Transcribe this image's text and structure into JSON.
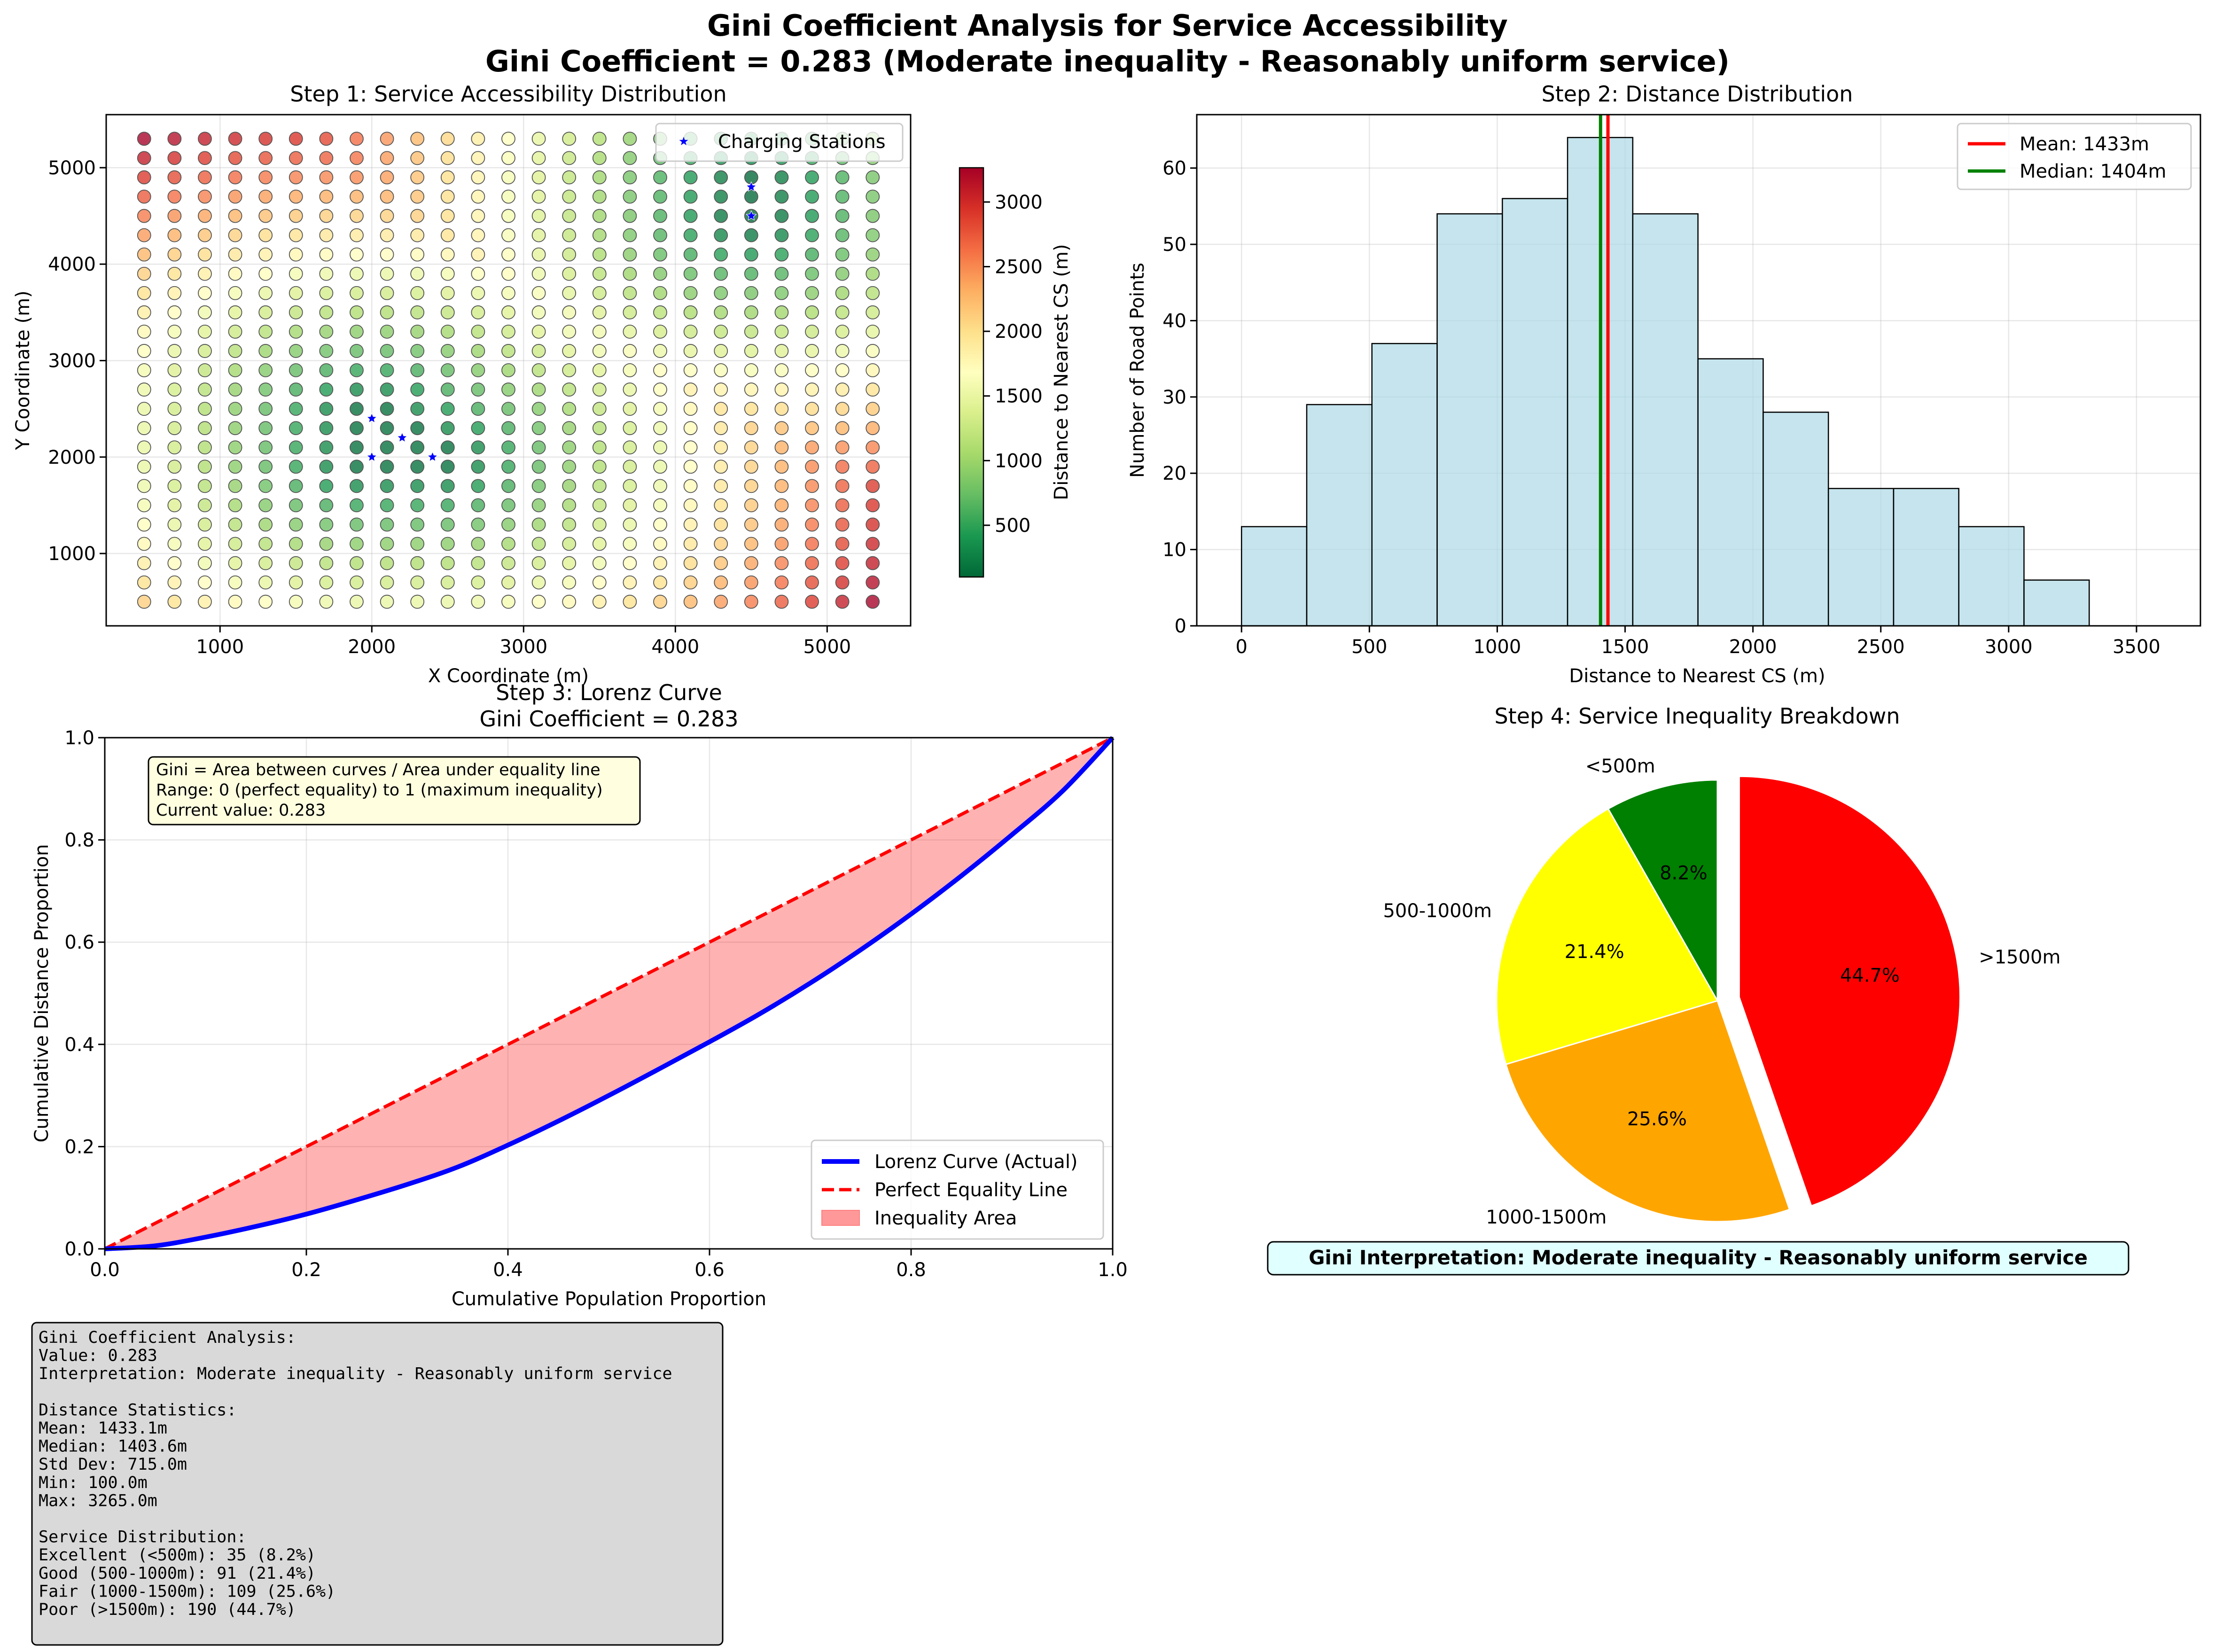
{
  "figure": {
    "title_line1": "Gini Coefficient Analysis for Service Accessibility",
    "title_line2": "Gini Coefficient = 0.283 (Moderate inequality - Reasonably uniform service)"
  },
  "chart_data": [
    {
      "id": "scatter",
      "type": "scatter",
      "title": "Step 1: Service Accessibility Distribution",
      "xlabel": "X Coordinate (m)",
      "ylabel": "Y Coordinate (m)",
      "xlim": [
        250,
        5550
      ],
      "ylim": [
        250,
        5550
      ],
      "xticks": [
        1000,
        2000,
        3000,
        4000,
        5000
      ],
      "yticks": [
        1000,
        2000,
        3000,
        4000,
        5000
      ],
      "grid": {
        "x_start": 500,
        "y_start": 500,
        "step": 200,
        "count": 25
      },
      "stations": [
        [
          2000,
          2400
        ],
        [
          2000,
          2000
        ],
        [
          2200,
          2200
        ],
        [
          2400,
          2000
        ],
        [
          4500,
          4500
        ],
        [
          4500,
          4800
        ]
      ],
      "legend": {
        "label": "Charging Stations",
        "position": "upper-right"
      },
      "colorbar": {
        "label": "Distance to Nearest CS (m)",
        "min": 100,
        "max": 3265,
        "ticks": [
          500,
          1000,
          1500,
          2000,
          2500,
          3000
        ],
        "colormap": "RdYlGn_r"
      }
    },
    {
      "id": "histogram",
      "type": "bar",
      "title": "Step 2: Distance Distribution",
      "xlabel": "Distance to Nearest CS (m)",
      "ylabel": "Number of Road Points",
      "bin_edges": [
        0,
        255,
        510,
        765,
        1020,
        1275,
        1530,
        1785,
        2040,
        2295,
        2550,
        2805,
        3060,
        3315,
        3570
      ],
      "counts": [
        13,
        29,
        37,
        54,
        56,
        64,
        54,
        35,
        28,
        18,
        18,
        13,
        6,
        0
      ],
      "xlim": [
        -175,
        3750
      ],
      "ylim": [
        0,
        67
      ],
      "xticks": [
        0,
        500,
        1000,
        1500,
        2000,
        2500,
        3000,
        3500
      ],
      "yticks": [
        0,
        10,
        20,
        30,
        40,
        50,
        60
      ],
      "lines": [
        {
          "name": "Mean: 1433m",
          "value": 1433,
          "color": "#ff0000"
        },
        {
          "name": "Median: 1404m",
          "value": 1404,
          "color": "#008000"
        }
      ],
      "bar_color": "#add8e6"
    },
    {
      "id": "lorenz",
      "type": "line",
      "title_line1": "Step 3: Lorenz Curve",
      "title_line2": "Gini Coefficient = 0.283",
      "xlabel": "Cumulative Population Proportion",
      "ylabel": "Cumulative Distance Proportion",
      "xlim": [
        0,
        1
      ],
      "ylim": [
        0,
        1
      ],
      "xticks": [
        "0.0",
        "0.2",
        "0.4",
        "0.6",
        "0.8",
        "1.0"
      ],
      "yticks": [
        "0.0",
        "0.2",
        "0.4",
        "0.6",
        "0.8",
        "1.0"
      ],
      "lorenz_x": [
        0,
        0.05,
        0.1,
        0.15,
        0.2,
        0.25,
        0.3,
        0.35,
        0.4,
        0.45,
        0.5,
        0.55,
        0.6,
        0.65,
        0.7,
        0.75,
        0.8,
        0.85,
        0.9,
        0.95,
        1.0
      ],
      "lorenz_y": [
        0,
        0.006,
        0.023,
        0.044,
        0.068,
        0.096,
        0.126,
        0.16,
        0.203,
        0.25,
        0.3,
        0.352,
        0.405,
        0.46,
        0.52,
        0.585,
        0.655,
        0.73,
        0.81,
        0.895,
        1.0
      ],
      "series": [
        {
          "name": "Lorenz Curve (Actual)",
          "color": "#0000ff"
        },
        {
          "name": "Perfect Equality Line",
          "color": "#ff0000"
        },
        {
          "name": "Inequality Area",
          "color": "#ff9999"
        }
      ],
      "annotation": [
        "Gini = Area between curves / Area under equality line",
        "Range: 0 (perfect equality) to 1 (maximum inequality)",
        "Current value: 0.283"
      ]
    },
    {
      "id": "pie",
      "type": "pie",
      "title": "Step 4: Service Inequality Breakdown",
      "labels": [
        "<500m",
        "500-1000m",
        "1000-1500m",
        ">1500m"
      ],
      "values": [
        35,
        91,
        109,
        190
      ],
      "percent_labels": [
        "8.2%",
        "21.4%",
        "25.6%",
        "44.7%"
      ],
      "colors": [
        "#008000",
        "#ffff00",
        "#ffa500",
        "#ff0000"
      ],
      "explode": [
        0,
        0,
        0,
        0.1
      ],
      "interpretation": "Gini Interpretation: Moderate inequality - Reasonably uniform service"
    }
  ],
  "summary_box": [
    "Gini Coefficient Analysis:",
    "Value: 0.283",
    "Interpretation: Moderate inequality - Reasonably uniform service",
    "",
    "Distance Statistics:",
    "Mean: 1433.1m",
    "Median: 1403.6m",
    "Std Dev: 715.0m",
    "Min: 100.0m",
    "Max: 3265.0m",
    "",
    "Service Distribution:",
    "Excellent (<500m): 35 (8.2%)",
    "Good (500-1000m): 91 (21.4%)",
    "Fair (1000-1500m): 109 (25.6%)",
    "Poor (>1500m): 190 (44.7%)"
  ]
}
